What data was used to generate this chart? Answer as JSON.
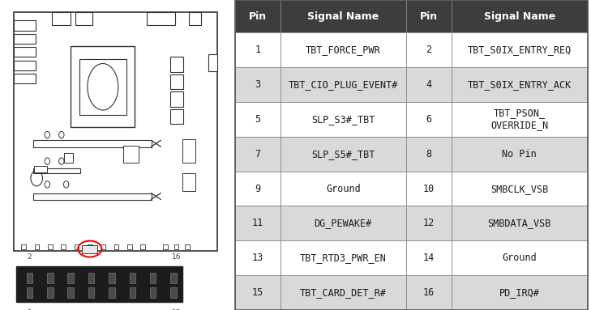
{
  "table_header_bg": "#3d3d3d",
  "table_header_fg": "#ffffff",
  "row_bg_odd": "#d9d9d9",
  "row_bg_even": "#ffffff",
  "table_border": "#888888",
  "text_color": "#1a1a1a",
  "header_fontsize": 9,
  "cell_fontsize": 8.5,
  "rows": [
    {
      "pin1": 1,
      "sig1": "TBT_FORCE_PWR",
      "pin2": 2,
      "sig2": "TBT_S0IX_ENTRY_REQ"
    },
    {
      "pin1": 3,
      "sig1": "TBT_CIO_PLUG_EVENT#",
      "pin2": 4,
      "sig2": "TBT_S0IX_ENTRY_ACK"
    },
    {
      "pin1": 5,
      "sig1": "SLP_S3#_TBT",
      "pin2": 6,
      "sig2": "TBT_PSON_\nOVERRIDE_N"
    },
    {
      "pin1": 7,
      "sig1": "SLP_S5#_TBT",
      "pin2": 8,
      "sig2": "No Pin"
    },
    {
      "pin1": 9,
      "sig1": "Ground",
      "pin2": 10,
      "sig2": "SMBCLK_VSB"
    },
    {
      "pin1": 11,
      "sig1": "DG_PEWAKE#",
      "pin2": 12,
      "sig2": "SMBDATA_VSB"
    },
    {
      "pin1": 13,
      "sig1": "TBT_RTD3_PWR_EN",
      "pin2": 14,
      "sig2": "Ground"
    },
    {
      "pin1": 15,
      "sig1": "TBT_CARD_DET_R#",
      "pin2": 16,
      "sig2": "PD_IRQ#"
    }
  ],
  "col_headers": [
    "Pin",
    "Signal Name",
    "Pin",
    "Signal Name"
  ],
  "background_color": "#ffffff"
}
